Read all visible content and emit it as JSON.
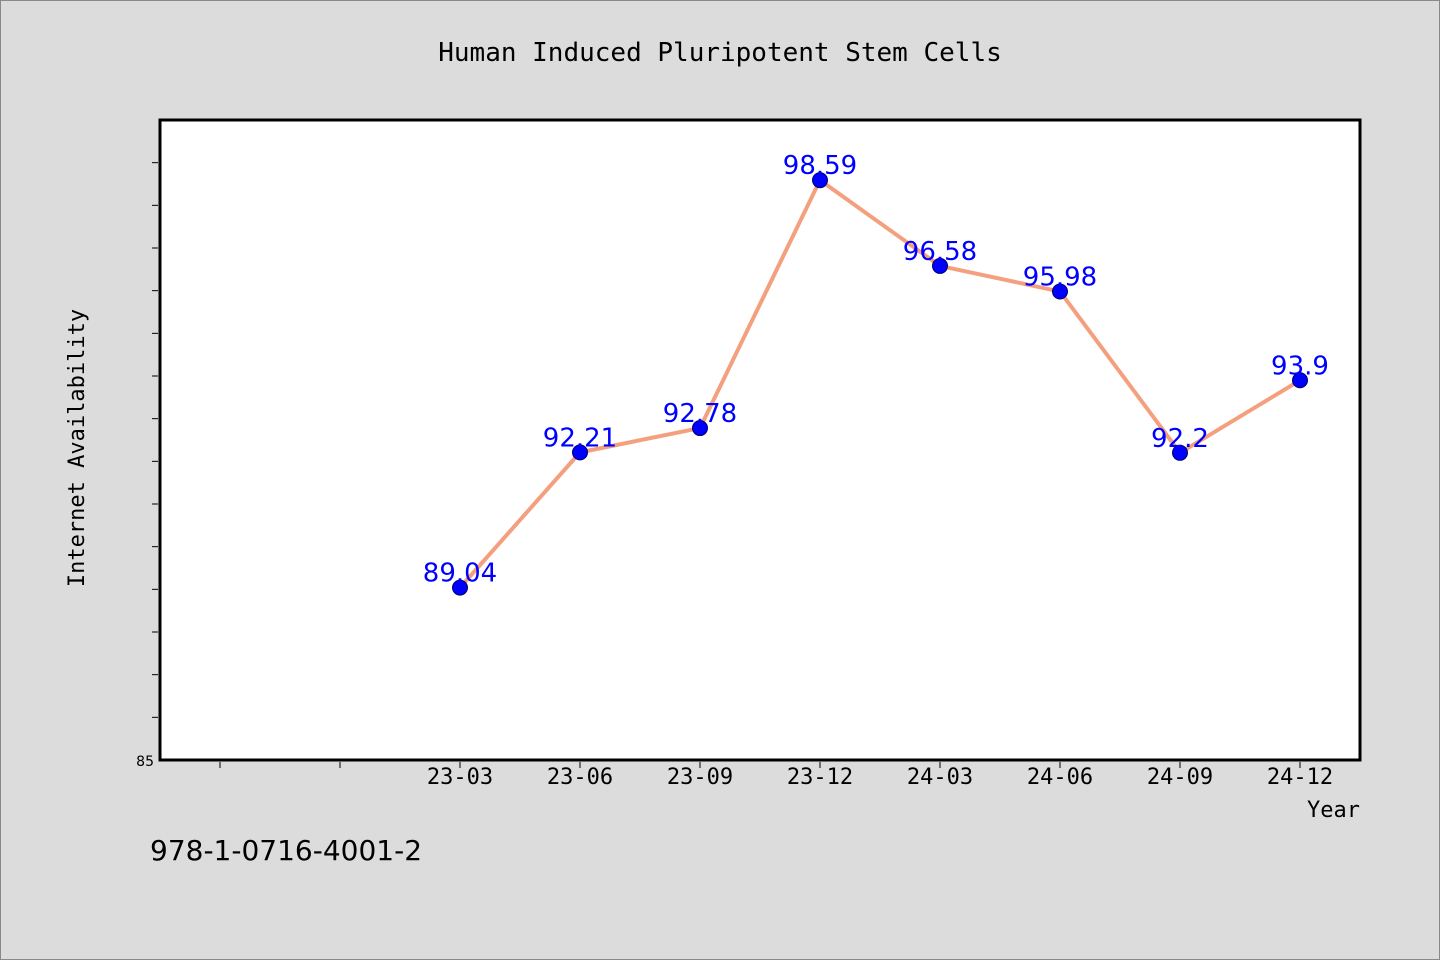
{
  "colors": {
    "background": "#dcdcdc",
    "plot_background": "#ffffff",
    "line": "#f4a07f",
    "marker": "#0000ff",
    "data_label": "#0000ff",
    "axis": "#000000"
  },
  "footer": {
    "isbn": "978-1-0716-4001-2"
  },
  "chart_data": {
    "type": "line",
    "title": "Human Induced Pluripotent Stem Cells",
    "xlabel": "Year",
    "ylabel": "Internet Availability",
    "categories": [
      "23-03",
      "23-06",
      "23-09",
      "23-12",
      "24-03",
      "24-06",
      "24-09",
      "24-12"
    ],
    "series": [
      {
        "values": [
          89.04,
          92.21,
          92.78,
          98.59,
          96.58,
          95.98,
          92.2,
          93.9
        ],
        "data_labels": [
          "89.04",
          "92.21",
          "92.78",
          "98.59",
          "96.58",
          "95.98",
          "92.2",
          "93.9"
        ]
      }
    ],
    "ylim": [
      85,
      100
    ],
    "yticks_labeled": [
      "85"
    ],
    "grid": false,
    "legend": "none",
    "marker": "circle"
  }
}
